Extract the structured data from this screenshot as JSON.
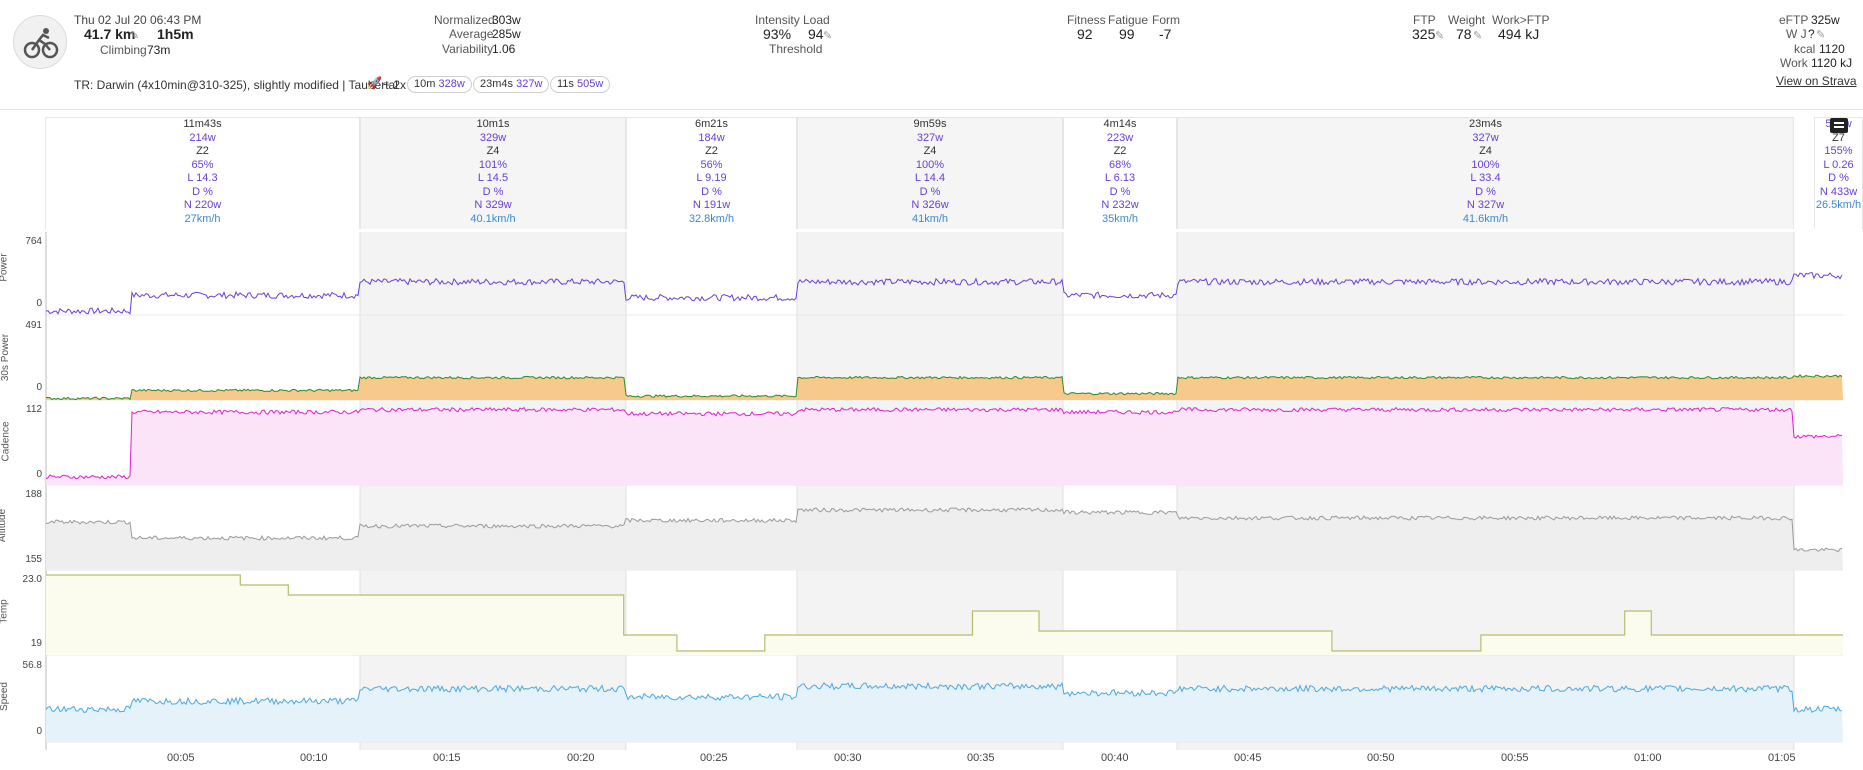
{
  "activity": {
    "date": "Thu 02 Jul 20",
    "time": "06:43 PM",
    "distance": "41.7 km",
    "duration": "1h5m",
    "climbing_label": "Climbing",
    "climbing": "73m",
    "name_prefix": "TR: Darwin (4x10min@310-325), slightly modified | Taubertal",
    "name_suffix": "~ 2x"
  },
  "power": {
    "normalized_label": "Normalized",
    "normalized": "303w",
    "average_label": "Average",
    "average": "285w",
    "variability_label": "Variability",
    "variability": "1.06"
  },
  "load": {
    "intensity_label": "Intensity",
    "intensity": "93%",
    "load_label": "Load",
    "load": "94",
    "threshold_label": "Threshold"
  },
  "fitness": {
    "fitness_label": "Fitness",
    "fitness": "92",
    "fatigue_label": "Fatigue",
    "fatigue": "99",
    "form_label": "Form",
    "form": "-7"
  },
  "ftp": {
    "ftp_label": "FTP",
    "ftp": "325",
    "weight_label": "Weight",
    "weight": "78",
    "work_ftp_label": "Work>FTP",
    "work_ftp": "494 kJ"
  },
  "right": {
    "eftp_label": "eFTP",
    "eftp": "325w",
    "wj_label": "W J",
    "wj": "?",
    "kcal_label": "kcal",
    "kcal": "1120",
    "work_label": "Work",
    "work": "1120 kJ",
    "strava": "View on Strava"
  },
  "pills": [
    {
      "dur": "10m",
      "pw": "328w"
    },
    {
      "dur": "23m4s",
      "pw": "327w"
    },
    {
      "dur": "11s",
      "pw": "505w"
    }
  ],
  "intervals": [
    {
      "dur": "11m43s",
      "watts": "214w",
      "zone": "Z2",
      "pct": "65%",
      "load": "L 14.3",
      "d": "D %",
      "np": "N 220w",
      "speed": "27km/h"
    },
    {
      "dur": "10m1s",
      "watts": "329w",
      "zone": "Z4",
      "pct": "101%",
      "load": "L 14.5",
      "d": "D %",
      "np": "N 329w",
      "speed": "40.1km/h"
    },
    {
      "dur": "6m21s",
      "watts": "184w",
      "zone": "Z2",
      "pct": "56%",
      "load": "L 9.19",
      "d": "D %",
      "np": "N 191w",
      "speed": "32.8km/h"
    },
    {
      "dur": "9m59s",
      "watts": "327w",
      "zone": "Z4",
      "pct": "100%",
      "load": "L 14.4",
      "d": "D %",
      "np": "N 326w",
      "speed": "41km/h"
    },
    {
      "dur": "4m14s",
      "watts": "223w",
      "zone": "Z2",
      "pct": "68%",
      "load": "L 6.13",
      "d": "D %",
      "np": "N 232w",
      "speed": "35km/h"
    },
    {
      "dur": "23m4s",
      "watts": "327w",
      "zone": "Z4",
      "pct": "100%",
      "load": "L 33.4",
      "d": "D %",
      "np": "N 327w",
      "speed": "41.6km/h"
    },
    {
      "dur": "",
      "watts": "505w",
      "zone": "Z7",
      "pct": "155%",
      "load": "L 0.26",
      "d": "D %",
      "np": "N 433w",
      "speed": "26.5km/h"
    }
  ],
  "panels": [
    {
      "name": "Power",
      "max": "764",
      "min": "0",
      "color": "#6a3fd4"
    },
    {
      "name": "30s Power",
      "max": "491",
      "min": "0",
      "color": "#2a8a2a"
    },
    {
      "name": "Cadence",
      "max": "112",
      "min": "0",
      "color": "#e020d0"
    },
    {
      "name": "Altitude",
      "max": "188",
      "min": "155",
      "color": "#9a9a9a"
    },
    {
      "name": "Temp",
      "max": "23.0",
      "min": "19",
      "color": "#b8bc70"
    },
    {
      "name": "Speed",
      "max": "56.8",
      "min": "0",
      "color": "#4aa8e0"
    }
  ],
  "xticks": [
    "00:05",
    "00:10",
    "00:15",
    "00:20",
    "00:25",
    "00:30",
    "00:35",
    "00:40",
    "00:45",
    "00:50",
    "00:55",
    "01:00",
    "01:05"
  ],
  "chart_data": {
    "type": "line",
    "x_unit": "minutes",
    "x_range": [
      0,
      67.5
    ],
    "temp_steps": [
      [
        0,
        23
      ],
      [
        7.3,
        23
      ],
      [
        7.3,
        22.5
      ],
      [
        9.1,
        22.5
      ],
      [
        9.1,
        22
      ],
      [
        21.7,
        22
      ],
      [
        21.7,
        20
      ],
      [
        23.7,
        20
      ],
      [
        23.7,
        19.2
      ],
      [
        27,
        19.2
      ],
      [
        27,
        20
      ],
      [
        34.8,
        20
      ],
      [
        34.8,
        21.2
      ],
      [
        37.3,
        21.2
      ],
      [
        37.3,
        20.2
      ],
      [
        48.3,
        20.2
      ],
      [
        48.3,
        19.2
      ],
      [
        53.9,
        19.2
      ],
      [
        53.9,
        20
      ],
      [
        59.3,
        20
      ],
      [
        59.3,
        21.2
      ],
      [
        60.3,
        21.2
      ],
      [
        60.3,
        20
      ],
      [
        67.5,
        20
      ]
    ]
  }
}
